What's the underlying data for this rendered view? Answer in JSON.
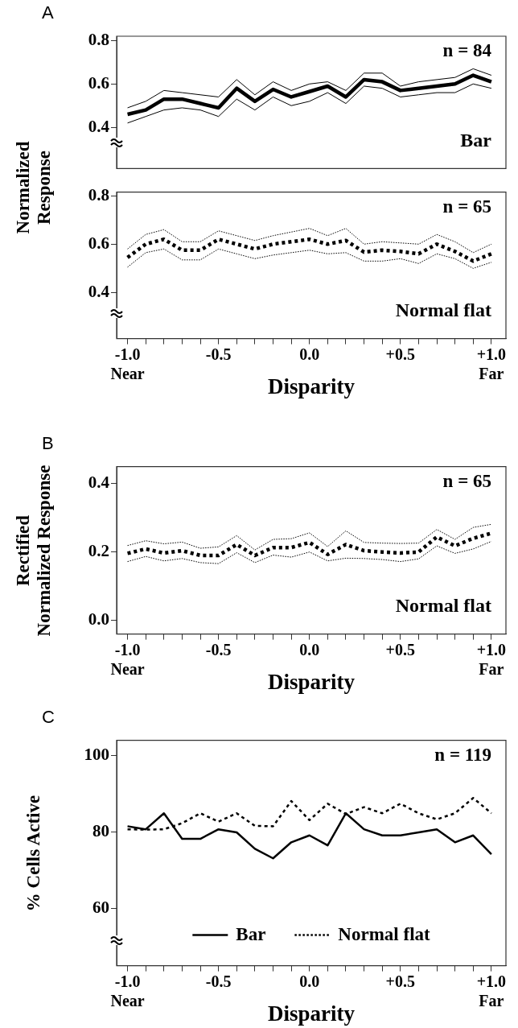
{
  "chart_data": [
    {
      "type": "line",
      "annotations": [
        "A",
        "n = 84"
      ],
      "ylabel": "Normalized Response",
      "tick_labels": "y",
      "legend": false,
      "x": [
        -1.0,
        -0.9,
        -0.8,
        -0.7,
        -0.6,
        -0.5,
        -0.4,
        -0.3,
        -0.2,
        -0.1,
        0.0,
        0.1,
        0.2,
        0.3,
        0.4,
        0.5,
        0.6,
        0.7,
        0.8,
        0.9,
        1.0
      ],
      "xlim": [
        -1.06,
        1.08
      ],
      "ylim": [
        0.21,
        0.82
      ],
      "yticks": [
        0.4,
        0.6,
        0.8
      ],
      "series": [
        {
          "color": "#000000",
          "line_style": "solid",
          "values": [
            0.49,
            0.52,
            0.57,
            0.56,
            0.55,
            0.54,
            0.62,
            0.55,
            0.61,
            0.57,
            0.6,
            0.61,
            0.57,
            0.65,
            0.65,
            0.59,
            0.61,
            0.62,
            0.63,
            0.67,
            0.64
          ]
        },
        {
          "color": "#000000",
          "line_style": "solid",
          "values": [
            0.42,
            0.45,
            0.48,
            0.49,
            0.48,
            0.45,
            0.53,
            0.48,
            0.54,
            0.5,
            0.52,
            0.56,
            0.51,
            0.59,
            0.58,
            0.54,
            0.55,
            0.56,
            0.56,
            0.6,
            0.58
          ]
        },
        {
          "name": "Bar",
          "color": "#000000",
          "line_style": "solid",
          "values": [
            0.46,
            0.48,
            0.53,
            0.53,
            0.51,
            0.49,
            0.58,
            0.52,
            0.575,
            0.54,
            0.565,
            0.59,
            0.54,
            0.62,
            0.61,
            0.57,
            0.58,
            0.59,
            0.6,
            0.64,
            0.61
          ]
        }
      ]
    },
    {
      "type": "line",
      "annotations": [
        "n = 65"
      ],
      "xlabel": "Disparity",
      "legend": false,
      "x": [
        -1.0,
        -0.9,
        -0.8,
        -0.7,
        -0.6,
        -0.5,
        -0.4,
        -0.3,
        -0.2,
        -0.1,
        0.0,
        0.1,
        0.2,
        0.3,
        0.4,
        0.5,
        0.6,
        0.7,
        0.8,
        0.9,
        1.0
      ],
      "xlim": [
        -1.06,
        1.08
      ],
      "xticks": [
        {
          "value": -1,
          "label": "-1.0\nNear"
        },
        {
          "value": -0.9,
          "label": null
        },
        {
          "value": -0.8,
          "label": null
        },
        {
          "value": -0.7,
          "label": null
        },
        {
          "value": -0.6,
          "label": null
        },
        {
          "value": -0.5,
          "label": "-0.5"
        },
        {
          "value": -0.4,
          "label": null
        },
        {
          "value": -0.3,
          "label": null
        },
        {
          "value": -0.2,
          "label": null
        },
        {
          "value": -0.1,
          "label": null
        },
        {
          "value": 0,
          "label": "0.0"
        },
        {
          "value": 0.1,
          "label": null
        },
        {
          "value": 0.2,
          "label": null
        },
        {
          "value": 0.3,
          "label": null
        },
        {
          "value": 0.4,
          "label": null
        },
        {
          "value": 0.5,
          "label": "+0.5"
        },
        {
          "value": 0.6,
          "label": null
        },
        {
          "value": 0.7,
          "label": null
        },
        {
          "value": 0.8,
          "label": null
        },
        {
          "value": 0.9,
          "label": null
        },
        {
          "value": 1,
          "label": "+1.0\nFar"
        }
      ],
      "ylim": [
        0.21,
        0.815
      ],
      "yticks": [
        0.4,
        0.6,
        0.8
      ],
      "series": [
        {
          "color": "#000000",
          "line_style": "dotted",
          "values": [
            0.58,
            0.64,
            0.66,
            0.61,
            0.61,
            0.655,
            0.635,
            0.615,
            0.635,
            0.65,
            0.665,
            0.635,
            0.665,
            0.6,
            0.61,
            0.605,
            0.6,
            0.64,
            0.61,
            0.565,
            0.6
          ]
        },
        {
          "color": "#000000",
          "line_style": "dotted",
          "values": [
            0.505,
            0.565,
            0.58,
            0.535,
            0.535,
            0.58,
            0.56,
            0.54,
            0.555,
            0.565,
            0.575,
            0.56,
            0.565,
            0.53,
            0.53,
            0.54,
            0.52,
            0.56,
            0.54,
            0.5,
            0.525
          ]
        },
        {
          "name": "Normal flat",
          "color": "#000000",
          "line_style": "dotted",
          "values": [
            0.545,
            0.6,
            0.62,
            0.575,
            0.575,
            0.62,
            0.6,
            0.58,
            0.6,
            0.61,
            0.62,
            0.6,
            0.615,
            0.567,
            0.575,
            0.57,
            0.56,
            0.6,
            0.57,
            0.53,
            0.56
          ]
        }
      ]
    },
    {
      "type": "line",
      "annotations": [
        "B",
        "n = 65"
      ],
      "xlabel": "Disparity",
      "ylabel": "Rectified Normalized Response",
      "legend": false,
      "x": [
        -1.0,
        -0.9,
        -0.8,
        -0.7,
        -0.6,
        -0.5,
        -0.4,
        -0.3,
        -0.2,
        -0.1,
        0.0,
        0.1,
        0.2,
        0.3,
        0.4,
        0.5,
        0.6,
        0.7,
        0.8,
        0.9,
        1.0
      ],
      "xlim": [
        -1.06,
        1.08
      ],
      "xticks": [
        {
          "value": -1,
          "label": "-1.0\nNear"
        },
        {
          "value": -0.9,
          "label": null
        },
        {
          "value": -0.8,
          "label": null
        },
        {
          "value": -0.7,
          "label": null
        },
        {
          "value": -0.6,
          "label": null
        },
        {
          "value": -0.5,
          "label": "-0.5"
        },
        {
          "value": -0.4,
          "label": null
        },
        {
          "value": -0.3,
          "label": null
        },
        {
          "value": -0.2,
          "label": null
        },
        {
          "value": -0.1,
          "label": null
        },
        {
          "value": 0,
          "label": "0.0"
        },
        {
          "value": 0.1,
          "label": null
        },
        {
          "value": 0.2,
          "label": null
        },
        {
          "value": 0.3,
          "label": null
        },
        {
          "value": 0.4,
          "label": null
        },
        {
          "value": 0.5,
          "label": "+0.5"
        },
        {
          "value": 0.6,
          "label": null
        },
        {
          "value": 0.7,
          "label": null
        },
        {
          "value": 0.8,
          "label": null
        },
        {
          "value": 0.9,
          "label": null
        },
        {
          "value": 1,
          "label": "+1.0\nFar"
        }
      ],
      "ylim": [
        -0.04,
        0.45
      ],
      "yticks": [
        {
          "value": 0,
          "label": "0.0"
        },
        0.2,
        0.4
      ],
      "series": [
        {
          "color": "#000000",
          "line_style": "dotted",
          "values": [
            0.219,
            0.233,
            0.224,
            0.229,
            0.211,
            0.215,
            0.248,
            0.206,
            0.237,
            0.239,
            0.256,
            0.216,
            0.262,
            0.228,
            0.226,
            0.225,
            0.226,
            0.266,
            0.237,
            0.272,
            0.281
          ]
        },
        {
          "color": "#000000",
          "line_style": "dotted",
          "values": [
            0.172,
            0.187,
            0.174,
            0.181,
            0.169,
            0.166,
            0.198,
            0.169,
            0.191,
            0.185,
            0.2,
            0.174,
            0.182,
            0.181,
            0.178,
            0.172,
            0.18,
            0.218,
            0.196,
            0.209,
            0.231
          ]
        },
        {
          "name": "Normal flat",
          "color": "#000000",
          "line_style": "dotted",
          "values": [
            0.196,
            0.209,
            0.197,
            0.204,
            0.19,
            0.19,
            0.222,
            0.19,
            0.213,
            0.213,
            0.228,
            0.193,
            0.222,
            0.204,
            0.2,
            0.197,
            0.2,
            0.244,
            0.218,
            0.24,
            0.255
          ]
        }
      ]
    },
    {
      "type": "line",
      "annotations": [
        "C",
        "n = 119"
      ],
      "xlabel": "Disparity",
      "ylabel": "% Cells Active",
      "legend": "bottom",
      "x": [
        -1.0,
        -0.9,
        -0.8,
        -0.7,
        -0.6,
        -0.5,
        -0.4,
        -0.3,
        -0.2,
        -0.1,
        0.0,
        0.1,
        0.2,
        0.3,
        0.4,
        0.5,
        0.6,
        0.7,
        0.8,
        0.9,
        1.0
      ],
      "xlim": [
        -1.06,
        1.08
      ],
      "xticks": [
        {
          "value": -1,
          "label": "-1.0\nNear"
        },
        {
          "value": -0.9,
          "label": null
        },
        {
          "value": -0.8,
          "label": null
        },
        {
          "value": -0.7,
          "label": null
        },
        {
          "value": -0.6,
          "label": null
        },
        {
          "value": -0.5,
          "label": "-0.5"
        },
        {
          "value": -0.4,
          "label": null
        },
        {
          "value": -0.3,
          "label": null
        },
        {
          "value": -0.2,
          "label": null
        },
        {
          "value": -0.1,
          "label": null
        },
        {
          "value": 0,
          "label": "0.0"
        },
        {
          "value": 0.1,
          "label": null
        },
        {
          "value": 0.2,
          "label": null
        },
        {
          "value": 0.3,
          "label": null
        },
        {
          "value": 0.4,
          "label": null
        },
        {
          "value": 0.5,
          "label": "+0.5"
        },
        {
          "value": 0.6,
          "label": null
        },
        {
          "value": 0.7,
          "label": null
        },
        {
          "value": 0.8,
          "label": null
        },
        {
          "value": 0.9,
          "label": null
        },
        {
          "value": 1,
          "label": "+1.0\nFar"
        }
      ],
      "ylim": [
        45,
        104
      ],
      "yticks": [
        60,
        80,
        100
      ],
      "series": [
        {
          "name": "Bar",
          "color": "#000000",
          "line_style": "solid",
          "values": [
            81.5,
            80.7,
            84.9,
            78.2,
            78.2,
            80.7,
            79.9,
            75.6,
            73.1,
            77.3,
            79.1,
            76.5,
            84.9,
            80.7,
            79.1,
            79.1,
            79.9,
            80.7,
            77.3,
            79.1,
            74.2
          ]
        },
        {
          "name": "Normal flat",
          "color": "#000000",
          "line_style": "dotted",
          "values": [
            80.7,
            80.6,
            80.7,
            82.3,
            84.9,
            82.7,
            84.9,
            81.6,
            81.5,
            88.1,
            83.1,
            87.4,
            84.7,
            86.5,
            84.9,
            87.4,
            84.9,
            83.3,
            84.9,
            88.9,
            84.9
          ]
        }
      ]
    }
  ]
}
